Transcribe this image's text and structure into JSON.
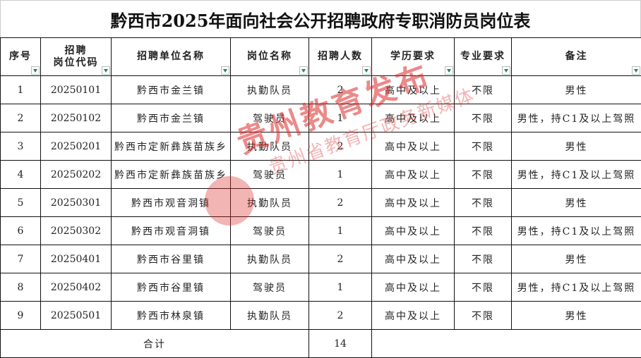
{
  "title": "黔西市2025年面向社会公开招聘政府专职消防员岗位表",
  "headers": [
    "序号",
    "招聘\n岗位代码",
    "招聘单位名称",
    "岗位名称",
    "招聘人数",
    "学历要求",
    "专业要求",
    "备注"
  ],
  "rows": [
    [
      "1",
      "20250101",
      "黔西市金兰镇",
      "执勤队员",
      "2",
      "高中及以上",
      "不限",
      "男性"
    ],
    [
      "2",
      "20250102",
      "黔西市金兰镇",
      "驾驶员",
      "1",
      "高中及以上",
      "不限",
      "男性，持C1及以上驾照"
    ],
    [
      "3",
      "20250201",
      "黔西市定新彝族苗族乡",
      "执勤队员",
      "2",
      "高中及以上",
      "不限",
      "男性"
    ],
    [
      "4",
      "20250202",
      "黔西市定新彝族苗族乡",
      "驾驶员",
      "1",
      "高中及以上",
      "不限",
      "男性，持C1及以上驾照"
    ],
    [
      "5",
      "20250301",
      "黔西市观音洞镇",
      "执勤队员",
      "2",
      "高中及以上",
      "不限",
      "男性"
    ],
    [
      "6",
      "20250302",
      "黔西市观音洞镇",
      "驾驶员",
      "1",
      "高中及以上",
      "不限",
      "男性，持C1及以上驾照"
    ],
    [
      "7",
      "20250401",
      "黔西市谷里镇",
      "执勤队员",
      "2",
      "高中及以上",
      "不限",
      "男性"
    ],
    [
      "8",
      "20250402",
      "黔西市谷里镇",
      "驾驶员",
      "1",
      "高中及以上",
      "不限",
      "男性，持C1及以上驾照"
    ],
    [
      "9",
      "20250501",
      "黔西市林泉镇",
      "执勤队员",
      "2",
      "高中及以上",
      "不限",
      "男性"
    ]
  ],
  "total": {
    "label": "合计",
    "value": "14"
  },
  "watermark": {
    "main": "贵州教育发布",
    "sub": "贵州省教育厅政务新媒体"
  },
  "colors": {
    "filter_arrow": "#1e8a55",
    "watermark": "#dc2828"
  }
}
